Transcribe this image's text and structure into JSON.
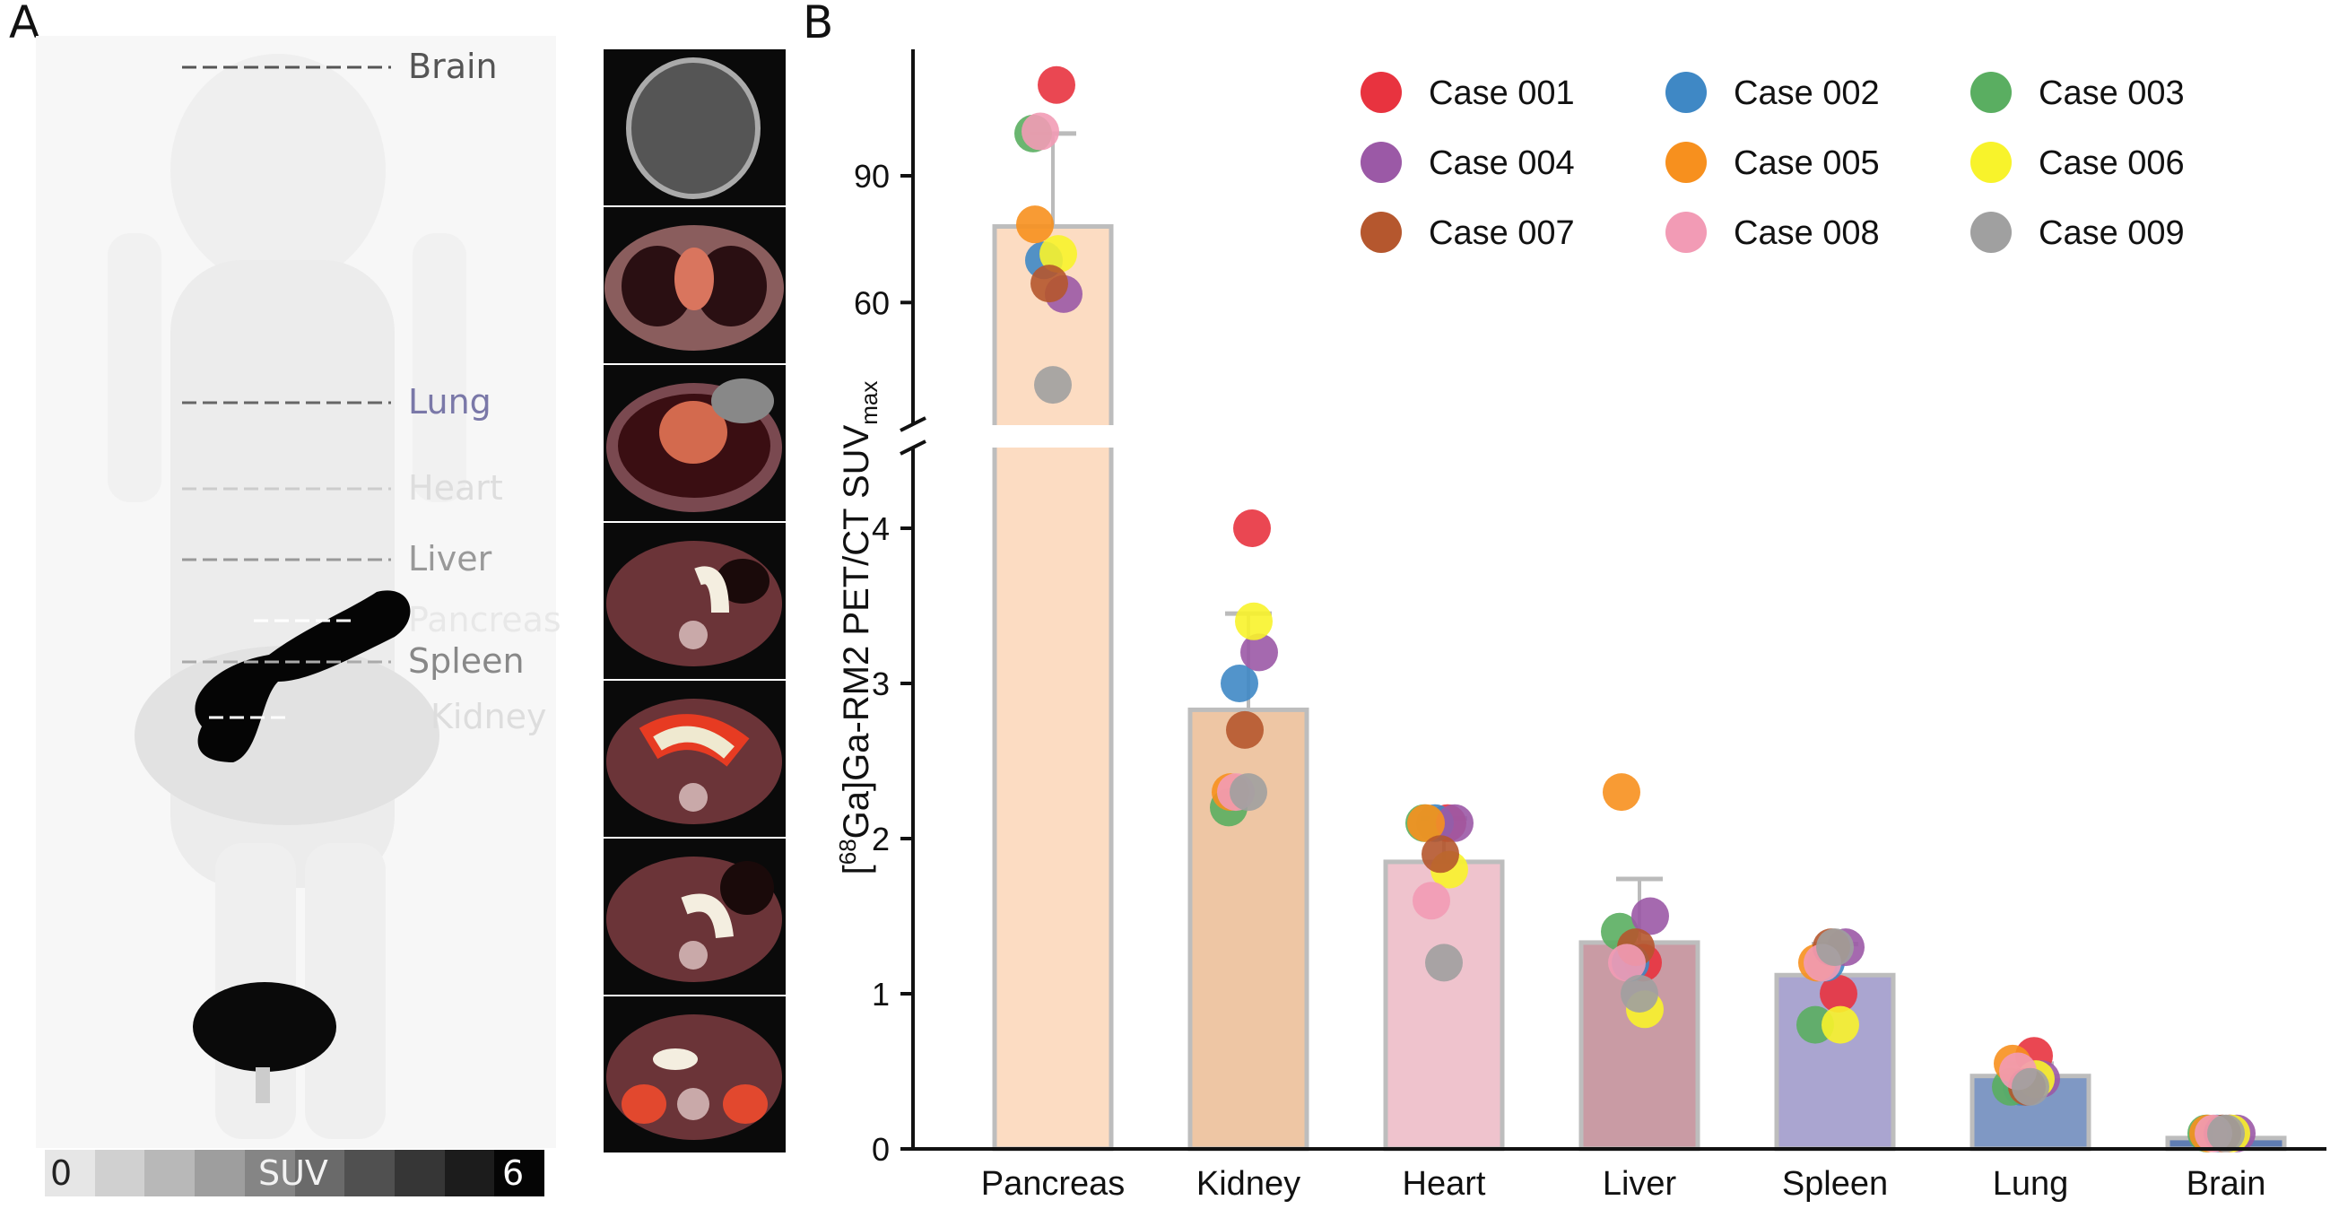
{
  "panel_a": {
    "letter": "A",
    "organ_labels": [
      "Brain",
      "Lung",
      "Heart",
      "Liver",
      "Pancreas",
      "Spleen",
      "Kidney"
    ],
    "colorbar": {
      "min": "0",
      "label": "SUV",
      "max": "6"
    }
  },
  "panel_b": {
    "letter": "B"
  },
  "chart_data": {
    "type": "bar",
    "title": "",
    "xlabel": "",
    "ylabel": "[68Ga]Ga-RM2 PET/CT SUVmax",
    "ylabel_parts": {
      "open": "[",
      "sup": "68",
      "main": "Ga]Ga-RM2 PET/CT SUV",
      "sub": "max"
    },
    "y_axis_break": true,
    "ylim_lower": [
      0,
      4.4
    ],
    "ylim_upper": [
      26,
      115
    ],
    "yticks_lower": [
      "0",
      "1",
      "2",
      "3",
      "4"
    ],
    "yticks_upper": [
      "60",
      "90"
    ],
    "categories": [
      "Pancreas",
      "Kidney",
      "Heart",
      "Liver",
      "Spleen",
      "Lung",
      "Brain"
    ],
    "values": [
      78,
      2.83,
      1.85,
      1.33,
      1.12,
      0.47,
      0.07
    ],
    "error_upper": [
      100,
      3.45,
      2.13,
      1.74,
      1.32,
      0.55,
      0.09
    ],
    "bar_colors": [
      "#fcdcc2",
      "#eec6a4",
      "#efc3cd",
      "#c99ba4",
      "#aaa5d0",
      "#7f98c4",
      "#5f7db3"
    ],
    "legend_placement": "top-right",
    "series": [
      {
        "name": "Case 001",
        "color": "#e8333f",
        "values": [
          111.5,
          4.0,
          2.1,
          1.2,
          1.0,
          0.6,
          0.1
        ]
      },
      {
        "name": "Case 002",
        "color": "#3f88c5",
        "values": [
          70,
          3.0,
          2.1,
          1.2,
          1.2,
          0.4,
          0.1
        ]
      },
      {
        "name": "Case 003",
        "color": "#5aae61",
        "values": [
          100,
          2.2,
          2.1,
          1.4,
          0.8,
          0.4,
          0.1
        ]
      },
      {
        "name": "Case 004",
        "color": "#9b59a6",
        "values": [
          62,
          3.2,
          2.1,
          1.5,
          1.3,
          0.45,
          0.1
        ]
      },
      {
        "name": "Case 005",
        "color": "#f7901e",
        "values": [
          78.5,
          2.3,
          2.1,
          2.3,
          1.2,
          0.55,
          0.1
        ]
      },
      {
        "name": "Case 006",
        "color": "#f8f32b",
        "values": [
          71.5,
          3.4,
          1.8,
          0.9,
          0.8,
          0.45,
          0.1
        ]
      },
      {
        "name": "Case 007",
        "color": "#b5572e",
        "values": [
          64.5,
          2.7,
          1.9,
          1.3,
          1.3,
          0.4,
          0.1
        ]
      },
      {
        "name": "Case 008",
        "color": "#f29bb5",
        "values": [
          100.5,
          2.3,
          1.6,
          1.2,
          1.2,
          0.5,
          0.1
        ]
      },
      {
        "name": "Case 009",
        "color": "#a0a0a0",
        "values": [
          40.5,
          2.3,
          1.2,
          1.0,
          1.3,
          0.4,
          0.1
        ]
      }
    ]
  }
}
